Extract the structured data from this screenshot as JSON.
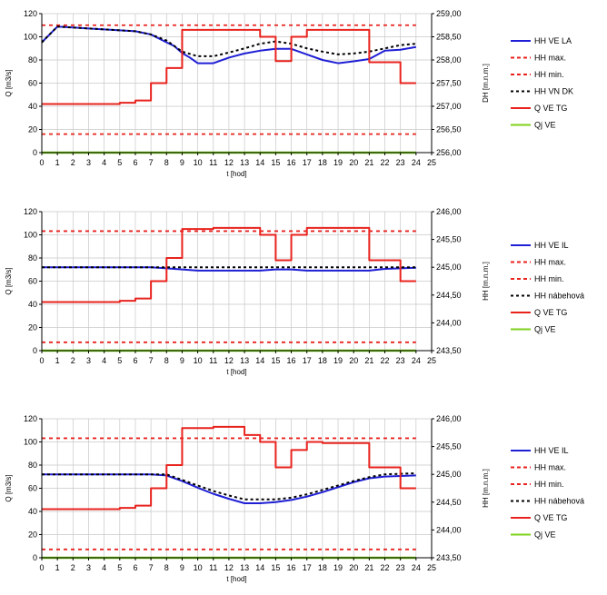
{
  "chart_data": [
    {
      "type": "line",
      "x_ticks": [
        "0",
        "1",
        "2",
        "3",
        "4",
        "5",
        "6",
        "7",
        "8",
        "9",
        "10",
        "11",
        "12",
        "13",
        "14",
        "15",
        "16",
        "17",
        "18",
        "19",
        "20",
        "21",
        "22",
        "23",
        "24",
        "25"
      ],
      "y_ticks": [
        "0",
        "20",
        "40",
        "60",
        "80",
        "100",
        "120"
      ],
      "y2_ticks": [
        "256,00",
        "256,50",
        "257,00",
        "257,50",
        "258,00",
        "258,50",
        "259,00"
      ],
      "xlabel": "t [hod]",
      "ylabel": "Q [m3/s]",
      "y2label": "DH [m.n.m.]",
      "xlim": [
        0,
        25
      ],
      "ylim": [
        0,
        120
      ],
      "y2lim": [
        256.0,
        259.0
      ],
      "grid": true,
      "legend_position": "right",
      "series": [
        {
          "name": "HH VE LA",
          "axis": "right",
          "style": "solid",
          "color": "#1f1fd6",
          "points": [
            [
              0,
              258.38
            ],
            [
              0.5,
              258.55
            ],
            [
              1,
              258.72
            ],
            [
              2,
              258.7
            ],
            [
              3,
              258.68
            ],
            [
              4,
              258.66
            ],
            [
              5,
              258.64
            ],
            [
              6,
              258.62
            ],
            [
              7,
              258.55
            ],
            [
              8,
              258.38
            ],
            [
              8.5,
              258.3
            ],
            [
              9,
              258.15
            ],
            [
              9.5,
              258.05
            ],
            [
              10,
              257.93
            ],
            [
              11,
              257.93
            ],
            [
              12,
              258.05
            ],
            [
              13,
              258.14
            ],
            [
              14,
              258.2
            ],
            [
              15,
              258.24
            ],
            [
              16,
              258.24
            ],
            [
              17,
              258.12
            ],
            [
              18,
              258.0
            ],
            [
              19,
              257.93
            ],
            [
              20,
              257.97
            ],
            [
              21,
              258.02
            ],
            [
              22,
              258.2
            ],
            [
              23,
              258.22
            ],
            [
              24,
              258.28
            ]
          ]
        },
        {
          "name": "HH max.",
          "axis": "right",
          "style": "dashed",
          "color": "#e8231e",
          "points": [
            [
              0,
              258.75
            ],
            [
              24,
              258.75
            ]
          ]
        },
        {
          "name": "HH min.",
          "axis": "right",
          "style": "dashed",
          "color": "#e8231e",
          "points": [
            [
              0,
              256.4
            ],
            [
              24,
              256.4
            ]
          ]
        },
        {
          "name": "HH VN DK",
          "axis": "right",
          "style": "dotted",
          "color": "#000000",
          "points": [
            [
              0,
              258.38
            ],
            [
              0.5,
              258.55
            ],
            [
              1,
              258.72
            ],
            [
              3,
              258.68
            ],
            [
              5,
              258.64
            ],
            [
              6,
              258.62
            ],
            [
              7,
              258.55
            ],
            [
              8,
              258.42
            ],
            [
              9,
              258.18
            ],
            [
              10,
              258.08
            ],
            [
              11,
              258.08
            ],
            [
              12,
              258.16
            ],
            [
              13,
              258.25
            ],
            [
              14,
              258.35
            ],
            [
              15,
              258.4
            ],
            [
              16,
              258.35
            ],
            [
              17,
              258.25
            ],
            [
              18,
              258.18
            ],
            [
              19,
              258.12
            ],
            [
              20,
              258.14
            ],
            [
              21,
              258.18
            ],
            [
              22,
              258.25
            ],
            [
              23,
              258.32
            ],
            [
              24,
              258.35
            ]
          ]
        },
        {
          "name": "Q VE TG",
          "axis": "left",
          "style": "step",
          "color": "#e8231e",
          "points": [
            [
              0,
              42
            ],
            [
              5,
              42
            ],
            [
              5,
              43
            ],
            [
              6,
              43
            ],
            [
              6,
              45
            ],
            [
              7,
              45
            ],
            [
              7,
              60
            ],
            [
              8,
              60
            ],
            [
              8,
              73
            ],
            [
              9,
              73
            ],
            [
              9,
              106
            ],
            [
              14,
              106
            ],
            [
              14,
              100
            ],
            [
              15,
              100
            ],
            [
              15,
              79
            ],
            [
              16,
              79
            ],
            [
              16,
              100
            ],
            [
              17,
              100
            ],
            [
              17,
              106
            ],
            [
              21,
              106
            ],
            [
              21,
              78
            ],
            [
              23,
              78
            ],
            [
              23,
              60
            ],
            [
              24,
              60
            ]
          ]
        },
        {
          "name": "Qj VE",
          "axis": "left",
          "style": "solid",
          "color": "#7dd21b",
          "points": [
            [
              0,
              0
            ],
            [
              24,
              0
            ]
          ]
        }
      ]
    },
    {
      "type": "line",
      "x_ticks": [
        "0",
        "1",
        "2",
        "3",
        "4",
        "5",
        "6",
        "7",
        "8",
        "9",
        "10",
        "11",
        "12",
        "13",
        "14",
        "15",
        "16",
        "17",
        "18",
        "19",
        "20",
        "21",
        "22",
        "23",
        "24",
        "25"
      ],
      "y_ticks": [
        "0",
        "20",
        "40",
        "60",
        "80",
        "100",
        "120"
      ],
      "y2_ticks": [
        "243,50",
        "244,00",
        "244,50",
        "245,00",
        "245,50",
        "246,00"
      ],
      "xlabel": "t [hod]",
      "ylabel": "Q [m3/s]",
      "y2label": "HH [m.n.m.]",
      "xlim": [
        0,
        25
      ],
      "ylim": [
        0,
        120
      ],
      "y2lim": [
        243.5,
        246.0
      ],
      "grid": true,
      "legend_position": "right",
      "series": [
        {
          "name": "HH VE IL",
          "axis": "right",
          "style": "solid",
          "color": "#1f1fd6",
          "points": [
            [
              0,
              245.0
            ],
            [
              7,
              245.0
            ],
            [
              8,
              244.98
            ],
            [
              9,
              244.96
            ],
            [
              10,
              244.94
            ],
            [
              14,
              244.94
            ],
            [
              15,
              244.96
            ],
            [
              16,
              244.96
            ],
            [
              17,
              244.94
            ],
            [
              21,
              244.94
            ],
            [
              22,
              244.97
            ],
            [
              23,
              244.98
            ],
            [
              24,
              244.99
            ]
          ]
        },
        {
          "name": "HH max.",
          "axis": "right",
          "style": "dashed",
          "color": "#e8231e",
          "points": [
            [
              0,
              245.65
            ],
            [
              24,
              245.65
            ]
          ]
        },
        {
          "name": "HH min.",
          "axis": "right",
          "style": "dashed",
          "color": "#e8231e",
          "points": [
            [
              0,
              243.65
            ],
            [
              24,
              243.65
            ]
          ]
        },
        {
          "name": "HH nábehová",
          "axis": "right",
          "style": "dotted",
          "color": "#000000",
          "points": [
            [
              0,
              245.0
            ],
            [
              24,
              245.0
            ]
          ]
        },
        {
          "name": "Q VE TG",
          "axis": "left",
          "style": "step",
          "color": "#e8231e",
          "points": [
            [
              0,
              42
            ],
            [
              5,
              42
            ],
            [
              5,
              43
            ],
            [
              6,
              43
            ],
            [
              6,
              45
            ],
            [
              7,
              45
            ],
            [
              7,
              60
            ],
            [
              8,
              60
            ],
            [
              8,
              80
            ],
            [
              9,
              80
            ],
            [
              9,
              105
            ],
            [
              11,
              105
            ],
            [
              11,
              106
            ],
            [
              14,
              106
            ],
            [
              14,
              100
            ],
            [
              15,
              100
            ],
            [
              15,
              78
            ],
            [
              16,
              78
            ],
            [
              16,
              100
            ],
            [
              17,
              100
            ],
            [
              17,
              106
            ],
            [
              21,
              106
            ],
            [
              21,
              78
            ],
            [
              23,
              78
            ],
            [
              23,
              60
            ],
            [
              24,
              60
            ]
          ]
        },
        {
          "name": "Qj VE",
          "axis": "left",
          "style": "solid",
          "color": "#7dd21b",
          "points": [
            [
              0,
              0
            ],
            [
              24,
              0
            ]
          ]
        }
      ]
    },
    {
      "type": "line",
      "x_ticks": [
        "0",
        "1",
        "2",
        "3",
        "4",
        "5",
        "6",
        "7",
        "8",
        "9",
        "10",
        "11",
        "12",
        "13",
        "14",
        "15",
        "16",
        "17",
        "18",
        "19",
        "20",
        "21",
        "22",
        "23",
        "24",
        "25"
      ],
      "y_ticks": [
        "0",
        "20",
        "40",
        "60",
        "80",
        "100",
        "120"
      ],
      "y2_ticks": [
        "243,50",
        "244,00",
        "244,50",
        "245,00",
        "245,50",
        "246,00"
      ],
      "xlabel": "t [hod]",
      "ylabel": "Q [m3/s]",
      "y2label": "HH [m.n.m.]",
      "xlim": [
        0,
        25
      ],
      "ylim": [
        0,
        120
      ],
      "y2lim": [
        243.5,
        246.0
      ],
      "grid": true,
      "legend_position": "right",
      "series": [
        {
          "name": "HH VE IL",
          "axis": "right",
          "style": "solid",
          "color": "#1f1fd6",
          "points": [
            [
              0,
              245.0
            ],
            [
              7,
              245.0
            ],
            [
              8,
              244.98
            ],
            [
              9,
              244.88
            ],
            [
              10,
              244.76
            ],
            [
              11,
              244.65
            ],
            [
              12,
              244.56
            ],
            [
              13,
              244.48
            ],
            [
              14,
              244.48
            ],
            [
              15,
              244.5
            ],
            [
              16,
              244.54
            ],
            [
              17,
              244.6
            ],
            [
              18,
              244.68
            ],
            [
              19,
              244.77
            ],
            [
              20,
              244.86
            ],
            [
              21,
              244.93
            ],
            [
              22,
              244.96
            ],
            [
              23,
              244.97
            ],
            [
              24,
              244.98
            ]
          ]
        },
        {
          "name": "HH max.",
          "axis": "right",
          "style": "dashed",
          "color": "#e8231e",
          "points": [
            [
              0,
              245.65
            ],
            [
              24,
              245.65
            ]
          ]
        },
        {
          "name": "HH min.",
          "axis": "right",
          "style": "dashed",
          "color": "#e8231e",
          "points": [
            [
              0,
              243.65
            ],
            [
              24,
              243.65
            ]
          ]
        },
        {
          "name": "HH nábehová",
          "axis": "right",
          "style": "dotted",
          "color": "#000000",
          "points": [
            [
              0,
              245.0
            ],
            [
              8,
              245.0
            ],
            [
              9,
              244.9
            ],
            [
              10,
              244.8
            ],
            [
              11,
              244.7
            ],
            [
              12,
              244.62
            ],
            [
              13,
              244.55
            ],
            [
              14,
              244.55
            ],
            [
              15,
              244.55
            ],
            [
              16,
              244.58
            ],
            [
              17,
              244.64
            ],
            [
              18,
              244.72
            ],
            [
              19,
              244.8
            ],
            [
              20,
              244.88
            ],
            [
              21,
              244.95
            ],
            [
              22,
              245.0
            ],
            [
              23,
              245.01
            ],
            [
              24,
              245.02
            ]
          ]
        },
        {
          "name": "Q VE TG",
          "axis": "left",
          "style": "step",
          "color": "#e8231e",
          "points": [
            [
              0,
              42
            ],
            [
              5,
              42
            ],
            [
              5,
              43
            ],
            [
              6,
              43
            ],
            [
              6,
              45
            ],
            [
              7,
              45
            ],
            [
              7,
              60
            ],
            [
              8,
              60
            ],
            [
              8,
              80
            ],
            [
              9,
              80
            ],
            [
              9,
              112
            ],
            [
              11,
              112
            ],
            [
              11,
              113
            ],
            [
              13,
              113
            ],
            [
              13,
              106
            ],
            [
              14,
              106
            ],
            [
              14,
              100
            ],
            [
              15,
              100
            ],
            [
              15,
              78
            ],
            [
              16,
              78
            ],
            [
              16,
              93
            ],
            [
              17,
              93
            ],
            [
              17,
              100
            ],
            [
              18,
              100
            ],
            [
              18,
              99
            ],
            [
              21,
              99
            ],
            [
              21,
              78
            ],
            [
              23,
              78
            ],
            [
              23,
              60
            ],
            [
              24,
              60
            ]
          ]
        },
        {
          "name": "Qj VE",
          "axis": "left",
          "style": "solid",
          "color": "#7dd21b",
          "points": [
            [
              0,
              0
            ],
            [
              24,
              0
            ]
          ]
        }
      ]
    }
  ]
}
